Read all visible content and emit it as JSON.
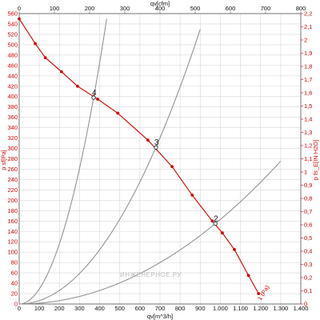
{
  "chart_data": {
    "type": "line",
    "title": "",
    "axes": {
      "x_bottom": {
        "label": "qv[m^3/h]",
        "range": [
          0,
          1400
        ],
        "ticks": [
          "0",
          "100",
          "200",
          "300",
          "400",
          "500",
          "600",
          "700",
          "800",
          "900",
          "1.000",
          "1.100",
          "1.200",
          "1.300",
          "1.400"
        ]
      },
      "x_top": {
        "label": "qv[cfm]",
        "range": [
          0,
          800
        ],
        "ticks": [
          "0",
          "100",
          "200",
          "300",
          "400",
          "500",
          "600",
          "700",
          "800"
        ]
      },
      "y_left": {
        "label": "p sf[Pa]",
        "range": [
          0,
          560
        ],
        "ticks": [
          "0",
          "20",
          "40",
          "60",
          "80",
          "100",
          "120",
          "140",
          "160",
          "180",
          "200",
          "220",
          "240",
          "260",
          "280",
          "300",
          "320",
          "340",
          "360",
          "380",
          "400",
          "420",
          "440",
          "460",
          "480",
          "500",
          "520",
          "540",
          "560"
        ]
      },
      "y_right": {
        "label": "p fs_E[IN H2O]",
        "range": [
          0,
          2.2
        ],
        "ticks": [
          "0",
          "0,1",
          "0,2",
          "0,3",
          "0,4",
          "0,5",
          "0,6",
          "0,7",
          "0,8",
          "0,9",
          "1",
          "1,1",
          "1,2",
          "1,3",
          "1,4",
          "1,5",
          "1,6",
          "1,7",
          "1,8",
          "1,9",
          "2",
          "2,1",
          "2,2"
        ]
      }
    },
    "grid": true,
    "series": [
      {
        "name": "",
        "color": "#d40000",
        "x": [
          0,
          80,
          130,
          210,
          290,
          370,
          390,
          490,
          640,
          760,
          860,
          960,
          1010,
          1070,
          1140,
          1190
        ],
        "y": [
          550,
          502,
          475,
          448,
          420,
          400,
          395,
          368,
          316,
          265,
          210,
          160,
          137,
          105,
          55,
          20
        ],
        "end_label": "1 (Pa)"
      }
    ],
    "system_curves": [
      {
        "color": "#8a8a8a",
        "k": 0.002907,
        "x_end": 440
      },
      {
        "color": "#8a8a8a",
        "k": 0.000654,
        "x_end": 900
      },
      {
        "color": "#8a8a8a",
        "k": 0.000163,
        "x_end": 1300
      }
    ],
    "operating_points": [
      {
        "label": "4",
        "x": 370,
        "y": 398
      },
      {
        "label": "3",
        "x": 680,
        "y": 302
      },
      {
        "label": "2",
        "x": 975,
        "y": 155
      }
    ],
    "watermark": "ИНЖЕНЕРНОЕ.РУ"
  }
}
